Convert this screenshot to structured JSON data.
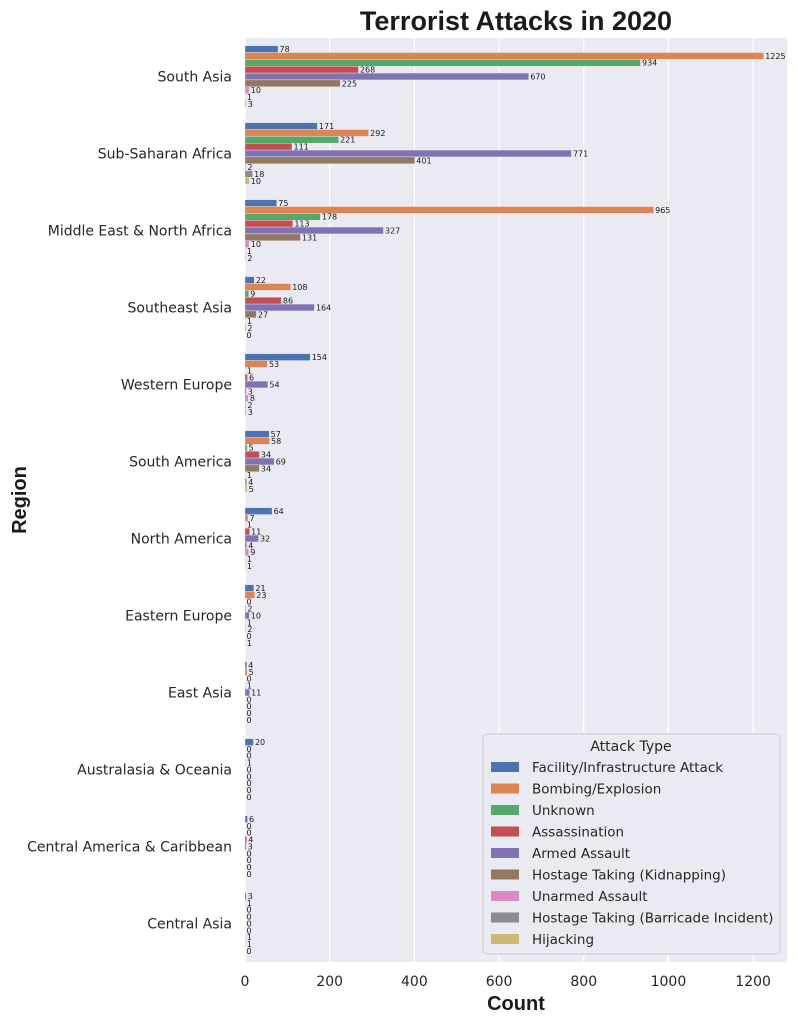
{
  "chart_data": {
    "type": "bar",
    "orientation": "horizontal",
    "title": "Terrorist Attacks in 2020",
    "xlabel": "Count",
    "ylabel": "Region",
    "xlim": [
      0,
      1280
    ],
    "xticks": [
      0,
      200,
      400,
      600,
      800,
      1000,
      1200
    ],
    "grid": true,
    "legend": {
      "title": "Attack Type",
      "placement": "lower-right"
    },
    "categories": [
      "South Asia",
      "Sub-Saharan Africa",
      "Middle East & North Africa",
      "Southeast Asia",
      "Western Europe",
      "South America",
      "North America",
      "Eastern Europe",
      "East Asia",
      "Australasia & Oceania",
      "Central America & Caribbean",
      "Central Asia"
    ],
    "series": [
      {
        "name": "Facility/Infrastructure Attack",
        "color": "#4c72b0",
        "values": [
          78,
          171,
          75,
          22,
          154,
          57,
          64,
          21,
          4,
          20,
          6,
          3
        ]
      },
      {
        "name": "Bombing/Explosion",
        "color": "#dd8452",
        "values": [
          1225,
          292,
          965,
          108,
          53,
          58,
          7,
          23,
          5,
          0,
          0,
          1
        ]
      },
      {
        "name": "Unknown",
        "color": "#55a868",
        "values": [
          934,
          221,
          178,
          9,
          1,
          5,
          1,
          0,
          0,
          0,
          0,
          0
        ]
      },
      {
        "name": "Assassination",
        "color": "#c44e52",
        "values": [
          268,
          111,
          113,
          86,
          6,
          34,
          11,
          2,
          1,
          1,
          4,
          0
        ]
      },
      {
        "name": "Armed Assault",
        "color": "#8172b3",
        "values": [
          670,
          771,
          327,
          164,
          54,
          69,
          32,
          10,
          11,
          0,
          3,
          0
        ]
      },
      {
        "name": "Hostage Taking (Kidnapping)",
        "color": "#937860",
        "values": [
          225,
          401,
          131,
          27,
          3,
          34,
          4,
          1,
          0,
          0,
          0,
          0
        ]
      },
      {
        "name": "Unarmed Assault",
        "color": "#da8bc3",
        "values": [
          10,
          2,
          10,
          1,
          8,
          1,
          9,
          2,
          0,
          0,
          0,
          1
        ]
      },
      {
        "name": "Hostage Taking (Barricade Incident)",
        "color": "#8c8c8c",
        "values": [
          1,
          18,
          1,
          2,
          2,
          4,
          1,
          0,
          0,
          0,
          0,
          1
        ]
      },
      {
        "name": "Hijacking",
        "color": "#ccb974",
        "values": [
          3,
          10,
          2,
          0,
          3,
          5,
          1,
          1,
          0,
          0,
          0,
          0
        ]
      }
    ]
  }
}
